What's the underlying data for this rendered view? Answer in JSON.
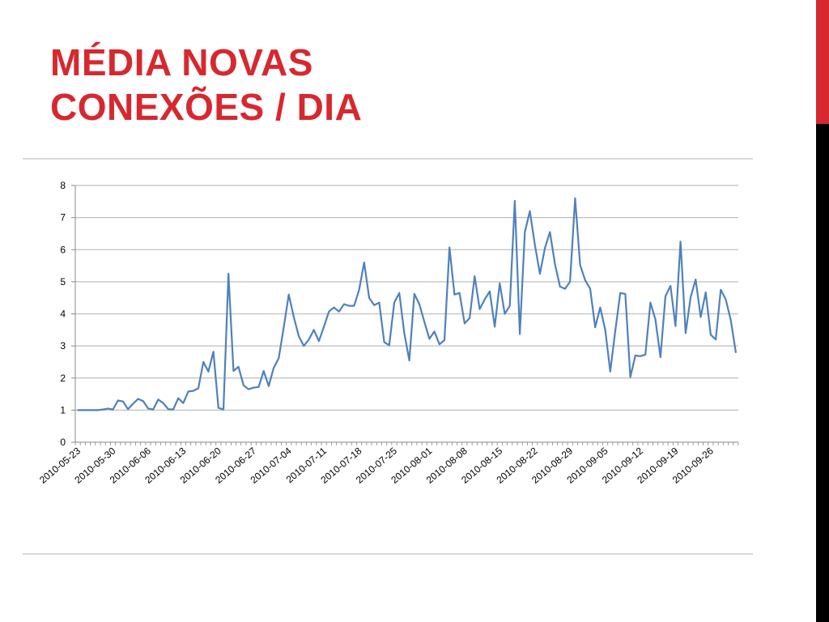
{
  "slide": {
    "title_line1": "MÉDIA NOVAS",
    "title_line2": "CONEXÕES / DIA",
    "colors": {
      "accent": "#d7282f",
      "side_bar_bottom": "#000000",
      "series_line": "#4f81bd",
      "gridline": "#bfbfbf"
    }
  },
  "chart_data": {
    "type": "line",
    "title": "",
    "xlabel": "",
    "ylabel": "",
    "ylim": [
      0,
      8
    ],
    "yticks": [
      0,
      1,
      2,
      3,
      4,
      5,
      6,
      7,
      8
    ],
    "grid": true,
    "legend": "none",
    "x_tick_labels": [
      "2010-05-23",
      "2010-05-30",
      "2010-06-06",
      "2010-06-13",
      "2010-06-20",
      "2010-06-27",
      "2010-07-04",
      "2010-07-11",
      "2010-07-18",
      "2010-07-25",
      "2010-08-01",
      "2010-08-08",
      "2010-08-15",
      "2010-08-22",
      "2010-08-29",
      "2010-09-05",
      "2010-09-12",
      "2010-09-19",
      "2010-09-26"
    ],
    "x_start": "2010-05-23",
    "series": [
      {
        "values": [
          1,
          1,
          1,
          1,
          1,
          1.02,
          1.05,
          1.02,
          1.3,
          1.27,
          1.03,
          1.2,
          1.35,
          1.28,
          1.05,
          1.02,
          1.33,
          1.22,
          1.03,
          1.02,
          1.37,
          1.22,
          1.58,
          1.6,
          1.68,
          2.5,
          2.2,
          2.82,
          1.07,
          1.02,
          5.25,
          2.22,
          2.35,
          1.77,
          1.65,
          1.7,
          1.72,
          2.22,
          1.75,
          2.32,
          2.62,
          3.58,
          4.6,
          3.9,
          3.3,
          3.0,
          3.2,
          3.5,
          3.15,
          3.6,
          4.07,
          4.2,
          4.07,
          4.3,
          4.25,
          4.25,
          4.75,
          5.6,
          4.5,
          4.27,
          4.35,
          3.12,
          3.02,
          4.35,
          4.65,
          3.4,
          2.55,
          4.62,
          4.3,
          3.75,
          3.22,
          3.45,
          3.05,
          3.18,
          6.07,
          4.6,
          4.65,
          3.7,
          3.87,
          5.17,
          4.15,
          4.45,
          4.7,
          3.6,
          4.95,
          4.0,
          4.25,
          7.52,
          3.37,
          6.55,
          7.2,
          6.15,
          5.25,
          6.05,
          6.55,
          5.55,
          4.85,
          4.78,
          5.0,
          7.6,
          5.52,
          5.05,
          4.78,
          3.58,
          4.2,
          3.5,
          2.2,
          3.47,
          4.65,
          4.62,
          2.03,
          2.7,
          2.68,
          2.73,
          4.35,
          3.82,
          2.65,
          4.55,
          4.87,
          3.62,
          6.25,
          3.4,
          4.52,
          5.07,
          3.9,
          4.67,
          3.35,
          3.2,
          4.75,
          4.45,
          3.8,
          2.8
        ]
      }
    ]
  }
}
